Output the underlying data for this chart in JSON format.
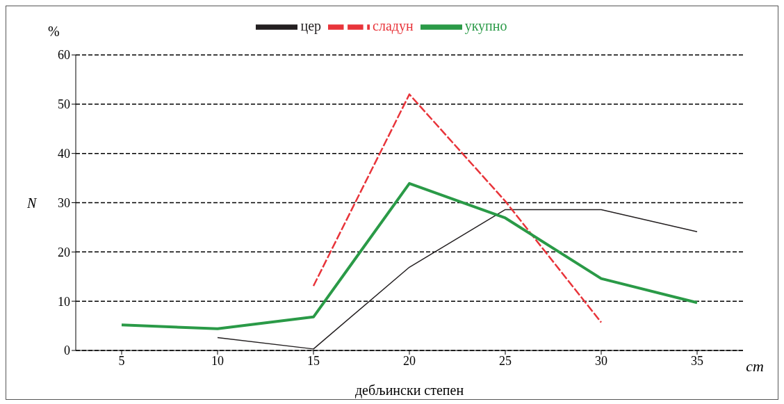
{
  "chart_data": {
    "type": "line",
    "xlabel": "дебљински степен",
    "ylabel": "N",
    "annotations": [
      "%",
      "cm"
    ],
    "categories": [
      "5",
      "10",
      "15",
      "20",
      "25",
      "30",
      "35"
    ],
    "series": [
      {
        "name": "цер",
        "color": "#231f20",
        "line_style": "solid",
        "values": [
          null,
          2.6,
          0.3,
          16.9,
          28.6,
          28.6,
          24.1
        ]
      },
      {
        "name": "сладун",
        "color": "#e8343a",
        "line_style": "dashed",
        "values": [
          null,
          null,
          13.1,
          52,
          30.3,
          5.7,
          null
        ]
      },
      {
        "name": "укупно",
        "color": "#2a9a47",
        "line_style": "solid",
        "values": [
          5.2,
          4.4,
          6.8,
          33.9,
          26.9,
          14.6,
          9.7
        ]
      }
    ],
    "ylim": [
      0,
      60
    ],
    "yticks": [
      0,
      10,
      20,
      30,
      40,
      50,
      60
    ],
    "grid": "y",
    "legend": "top"
  }
}
